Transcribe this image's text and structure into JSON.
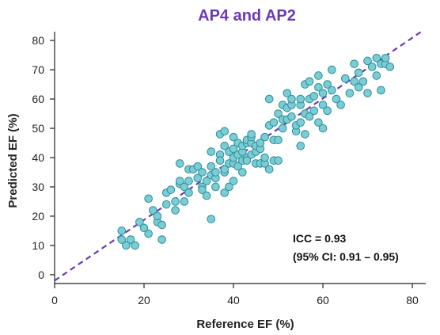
{
  "chart_data": {
    "type": "scatter",
    "title": "AP4 and AP2",
    "xlabel": "Reference EF (%)",
    "ylabel": "Predicted EF (%)",
    "xlim": [
      0,
      83
    ],
    "ylim": [
      -3,
      83
    ],
    "xticks": [
      0,
      20,
      40,
      60,
      80
    ],
    "yticks": [
      0,
      10,
      20,
      30,
      40,
      50,
      60,
      70,
      80
    ],
    "grid": false,
    "identity_line": {
      "x": [
        0,
        82
      ],
      "y": [
        -2,
        83
      ]
    },
    "annotations": [
      "ICC = 0.93",
      "(95% CI: 0.91 – 0.95)"
    ],
    "colors": {
      "title": "#6a3ab2",
      "points": "#7cccd4",
      "point_edge": "#2a8f9a",
      "line": "#6a3ab2"
    },
    "x": [
      15,
      15,
      16,
      17,
      18,
      19,
      20,
      21,
      21,
      22,
      23,
      23,
      24,
      24,
      25,
      25,
      26,
      27,
      27,
      28,
      28,
      28,
      29,
      29,
      30,
      30,
      30,
      31,
      32,
      32,
      33,
      33,
      33,
      34,
      34,
      35,
      35,
      35,
      35,
      36,
      36,
      36,
      37,
      37,
      37,
      38,
      38,
      38,
      38,
      38,
      39,
      39,
      39,
      40,
      40,
      40,
      40,
      40,
      41,
      41,
      41,
      42,
      42,
      42,
      42,
      43,
      43,
      43,
      43,
      44,
      44,
      44,
      44,
      45,
      45,
      45,
      46,
      46,
      46,
      47,
      47,
      47,
      48,
      48,
      48,
      49,
      49,
      49,
      50,
      50,
      50,
      51,
      51,
      51,
      52,
      52,
      52,
      53,
      53,
      53,
      54,
      54,
      55,
      55,
      55,
      55,
      56,
      56,
      56,
      57,
      57,
      57,
      58,
      58,
      59,
      59,
      59,
      60,
      60,
      60,
      61,
      61,
      62,
      62,
      63,
      64,
      65,
      66,
      67,
      67,
      68,
      68,
      69,
      70,
      70,
      71,
      72,
      72,
      73,
      73,
      74,
      74,
      75
    ],
    "y": [
      15,
      12,
      10,
      12,
      10,
      18,
      16,
      26,
      14,
      22,
      18,
      20,
      17,
      12,
      24,
      28,
      29,
      22,
      25,
      31,
      38,
      32,
      30,
      25,
      28,
      32,
      36,
      36,
      33,
      37,
      35,
      30,
      29,
      27,
      32,
      19,
      34,
      37,
      42,
      30,
      33,
      35,
      41,
      39,
      48,
      28,
      35,
      36,
      44,
      49,
      30,
      38,
      42,
      32,
      38,
      40,
      43,
      47,
      37,
      41,
      45,
      35,
      39,
      42,
      44,
      40,
      45,
      46,
      39,
      45,
      47,
      48,
      41,
      38,
      42,
      44,
      38,
      43,
      45,
      38,
      40,
      47,
      36,
      51,
      60,
      39,
      46,
      52,
      39,
      46,
      55,
      50,
      53,
      58,
      57,
      53,
      62,
      54,
      58,
      60,
      49,
      51,
      44,
      58,
      52,
      60,
      48,
      55,
      65,
      54,
      60,
      66,
      56,
      61,
      52,
      64,
      68,
      50,
      58,
      62,
      56,
      65,
      63,
      70,
      60,
      58,
      67,
      62,
      72,
      66,
      69,
      64,
      66,
      62,
      73,
      71,
      74,
      68,
      63,
      72,
      72,
      74,
      71
    ]
  }
}
